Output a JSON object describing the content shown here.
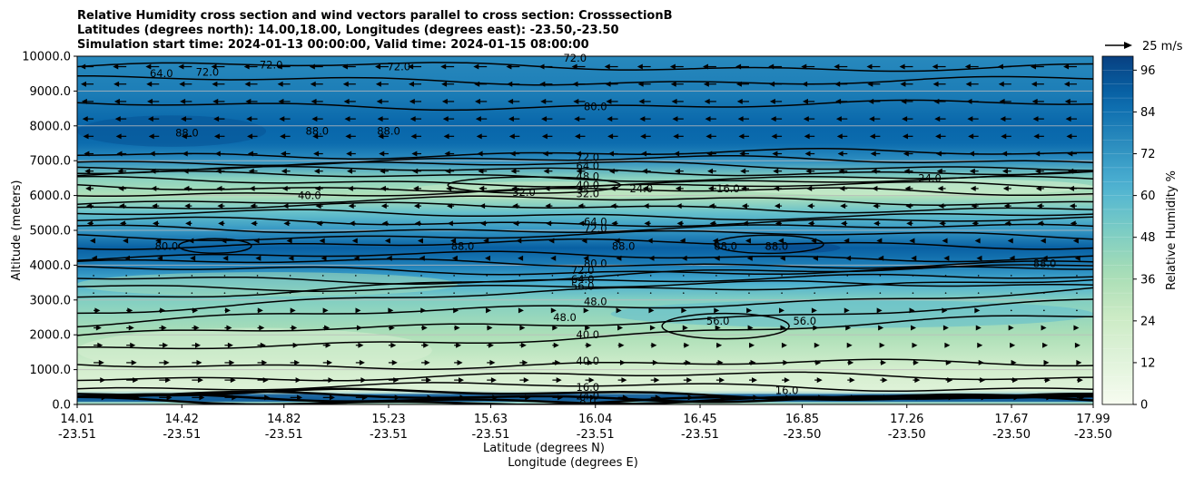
{
  "chart_data": {
    "type": "contour",
    "title_lines": [
      "Relative Humidity cross section and wind vectors parallel to cross section: CrosssectionB",
      "Latitudes (degrees north): 14.00,18.00, Longitudes (degrees east): -23.50,-23.50",
      "Simulation start time: 2024-01-13 00:00:00, Valid time: 2024-01-15 08:00:00"
    ],
    "ylabel": "Altitude (meters)",
    "xlabel_lat": "Latitude (degrees N)",
    "xlabel_lon": "Longitude (degrees E)",
    "ylim": [
      0,
      10000
    ],
    "y_ticks": [
      "0.0",
      "1000.0",
      "2000.0",
      "3000.0",
      "4000.0",
      "5000.0",
      "6000.0",
      "7000.0",
      "8000.0",
      "9000.0",
      "10000.0"
    ],
    "y_tick_values": [
      0,
      1000,
      2000,
      3000,
      4000,
      5000,
      6000,
      7000,
      8000,
      9000,
      10000
    ],
    "x_ticks": [
      {
        "lat": "14.01",
        "lon": "-23.51"
      },
      {
        "lat": "14.42",
        "lon": "-23.51"
      },
      {
        "lat": "14.82",
        "lon": "-23.51"
      },
      {
        "lat": "15.23",
        "lon": "-23.51"
      },
      {
        "lat": "15.63",
        "lon": "-23.51"
      },
      {
        "lat": "16.04",
        "lon": "-23.51"
      },
      {
        "lat": "16.45",
        "lon": "-23.51"
      },
      {
        "lat": "16.85",
        "lon": "-23.50"
      },
      {
        "lat": "17.26",
        "lon": "-23.50"
      },
      {
        "lat": "17.67",
        "lon": "-23.50"
      },
      {
        "lat": "17.99",
        "lon": "-23.50"
      }
    ],
    "x_tick_values": [
      14.01,
      14.42,
      14.82,
      15.23,
      15.63,
      16.04,
      16.45,
      16.85,
      17.26,
      17.67,
      17.99
    ],
    "xlim": [
      14.01,
      17.99
    ],
    "colorbar": {
      "label": "Relative Humidity %",
      "range": [
        0,
        100
      ],
      "ticks": [
        "0",
        "12",
        "24",
        "36",
        "48",
        "60",
        "72",
        "84",
        "96"
      ],
      "tick_values": [
        0,
        12,
        24,
        36,
        48,
        60,
        72,
        84,
        96
      ],
      "levels": 25,
      "colormap": "GnBu"
    },
    "quiver_key": "25 m/s",
    "grid": "horizontal",
    "rh_profile": [
      {
        "alt": 0,
        "rh": 30
      },
      {
        "alt": 150,
        "rh": 70
      },
      {
        "alt": 400,
        "rh": 14
      },
      {
        "alt": 1000,
        "rh": 20
      },
      {
        "alt": 2000,
        "rh": 36
      },
      {
        "alt": 3000,
        "rh": 48
      },
      {
        "alt": 3500,
        "rh": 64
      },
      {
        "alt": 4000,
        "rh": 80
      },
      {
        "alt": 4500,
        "rh": 90
      },
      {
        "alt": 5000,
        "rh": 72
      },
      {
        "alt": 5500,
        "rh": 56
      },
      {
        "alt": 6000,
        "rh": 34
      },
      {
        "alt": 6500,
        "rh": 46
      },
      {
        "alt": 7000,
        "rh": 74
      },
      {
        "alt": 7500,
        "rh": 86
      },
      {
        "alt": 8000,
        "rh": 88
      },
      {
        "alt": 9000,
        "rh": 80
      },
      {
        "alt": 10000,
        "rh": 76
      }
    ],
    "contour_labels": [
      {
        "text": "64.0",
        "lat": 14.34,
        "alt": 9500
      },
      {
        "text": "72.0",
        "lat": 14.52,
        "alt": 9550
      },
      {
        "text": "72.0",
        "lat": 14.77,
        "alt": 9750
      },
      {
        "text": "72.0",
        "lat": 15.27,
        "alt": 9700
      },
      {
        "text": "72.0",
        "lat": 15.96,
        "alt": 9950
      },
      {
        "text": "80.0",
        "lat": 16.04,
        "alt": 8550
      },
      {
        "text": "88.0",
        "lat": 14.44,
        "alt": 7800
      },
      {
        "text": "88.0",
        "lat": 14.95,
        "alt": 7850
      },
      {
        "text": "88.0",
        "lat": 15.23,
        "alt": 7850
      },
      {
        "text": "72.0",
        "lat": 16.01,
        "alt": 7100
      },
      {
        "text": "64.0",
        "lat": 16.01,
        "alt": 6850
      },
      {
        "text": "48.0",
        "lat": 16.01,
        "alt": 6550
      },
      {
        "text": "40.0",
        "lat": 16.01,
        "alt": 6300
      },
      {
        "text": "32.0",
        "lat": 16.01,
        "alt": 6050
      },
      {
        "text": "40.0",
        "lat": 14.92,
        "alt": 6000
      },
      {
        "text": "32.0",
        "lat": 15.76,
        "alt": 6100
      },
      {
        "text": "24.0",
        "lat": 16.22,
        "alt": 6200
      },
      {
        "text": "16.0",
        "lat": 16.56,
        "alt": 6200
      },
      {
        "text": "24.0",
        "lat": 17.35,
        "alt": 6500
      },
      {
        "text": "64.0",
        "lat": 16.04,
        "alt": 5250
      },
      {
        "text": "72.0",
        "lat": 16.04,
        "alt": 5050
      },
      {
        "text": "80.0",
        "lat": 14.36,
        "alt": 4550
      },
      {
        "text": "88.0",
        "lat": 15.52,
        "alt": 4550
      },
      {
        "text": "88.0",
        "lat": 16.15,
        "alt": 4550
      },
      {
        "text": "88.0",
        "lat": 16.55,
        "alt": 4550
      },
      {
        "text": "88.0",
        "lat": 16.75,
        "alt": 4550
      },
      {
        "text": "88.0",
        "lat": 17.8,
        "alt": 4050
      },
      {
        "text": "80.0",
        "lat": 16.04,
        "alt": 4050
      },
      {
        "text": "72.0",
        "lat": 15.99,
        "alt": 3850
      },
      {
        "text": "64.0",
        "lat": 15.99,
        "alt": 3600
      },
      {
        "text": "56.0",
        "lat": 15.99,
        "alt": 3400
      },
      {
        "text": "48.0",
        "lat": 16.04,
        "alt": 2950
      },
      {
        "text": "48.0",
        "lat": 15.92,
        "alt": 2500
      },
      {
        "text": "40.0",
        "lat": 16.01,
        "alt": 2000
      },
      {
        "text": "56.0",
        "lat": 16.52,
        "alt": 2400
      },
      {
        "text": "56.0",
        "lat": 16.86,
        "alt": 2400
      },
      {
        "text": "40.0",
        "lat": 16.01,
        "alt": 1250
      },
      {
        "text": "16.0",
        "lat": 16.01,
        "alt": 500
      },
      {
        "text": "16.0",
        "lat": 16.79,
        "alt": 400
      },
      {
        "text": "24.0",
        "lat": 16.01,
        "alt": 250
      },
      {
        "text": "8.0",
        "lat": 16.01,
        "alt": 100
      }
    ]
  }
}
